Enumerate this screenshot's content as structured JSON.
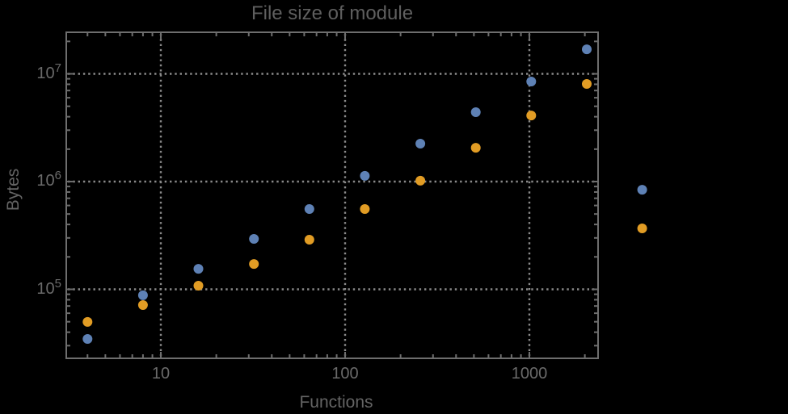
{
  "colors": {
    "background": "#000000",
    "frame": "#6e6e6e",
    "gridline": "#8a8a8a",
    "title_text": "#5f5f5f",
    "tick_text": "#6a6a6a",
    "series1": "#5e81b5",
    "series2": "#e19c24"
  },
  "chart_data": {
    "type": "scatter",
    "title": "File size of module",
    "xlabel": "Functions",
    "ylabel": "Bytes",
    "x_scale": "log",
    "y_scale": "log",
    "grid": "dotted",
    "legend_position": "none",
    "x_axis": {
      "label": "Functions",
      "range": [
        3.07,
        2360
      ],
      "ticks": [
        {
          "v": 10,
          "label": "10"
        },
        {
          "v": 100,
          "label": "100"
        },
        {
          "v": 1000,
          "label": "1000"
        }
      ]
    },
    "y_axis": {
      "label": "Bytes",
      "range": [
        22900,
        24300000
      ],
      "ticks": [
        {
          "v": 100000,
          "base": "10",
          "exp": "5"
        },
        {
          "v": 1000000,
          "base": "10",
          "exp": "6"
        },
        {
          "v": 10000000,
          "base": "10",
          "exp": "7"
        }
      ]
    },
    "x": [
      4,
      8,
      16,
      32,
      64,
      128,
      256,
      512,
      1024,
      2048,
      4096
    ],
    "series": [
      {
        "name": "series-1-blue",
        "color": "#5e81b5",
        "values": [
          34600,
          88000,
          155000,
          294000,
          556000,
          1130000,
          2250000,
          4410000,
          8490000,
          16900000,
          840000
        ]
      },
      {
        "name": "series-2-orange",
        "color": "#e19c24",
        "values": [
          49800,
          71500,
          108000,
          172000,
          289000,
          556000,
          1020000,
          2060000,
          4110000,
          8060000,
          368000
        ]
      }
    ]
  }
}
